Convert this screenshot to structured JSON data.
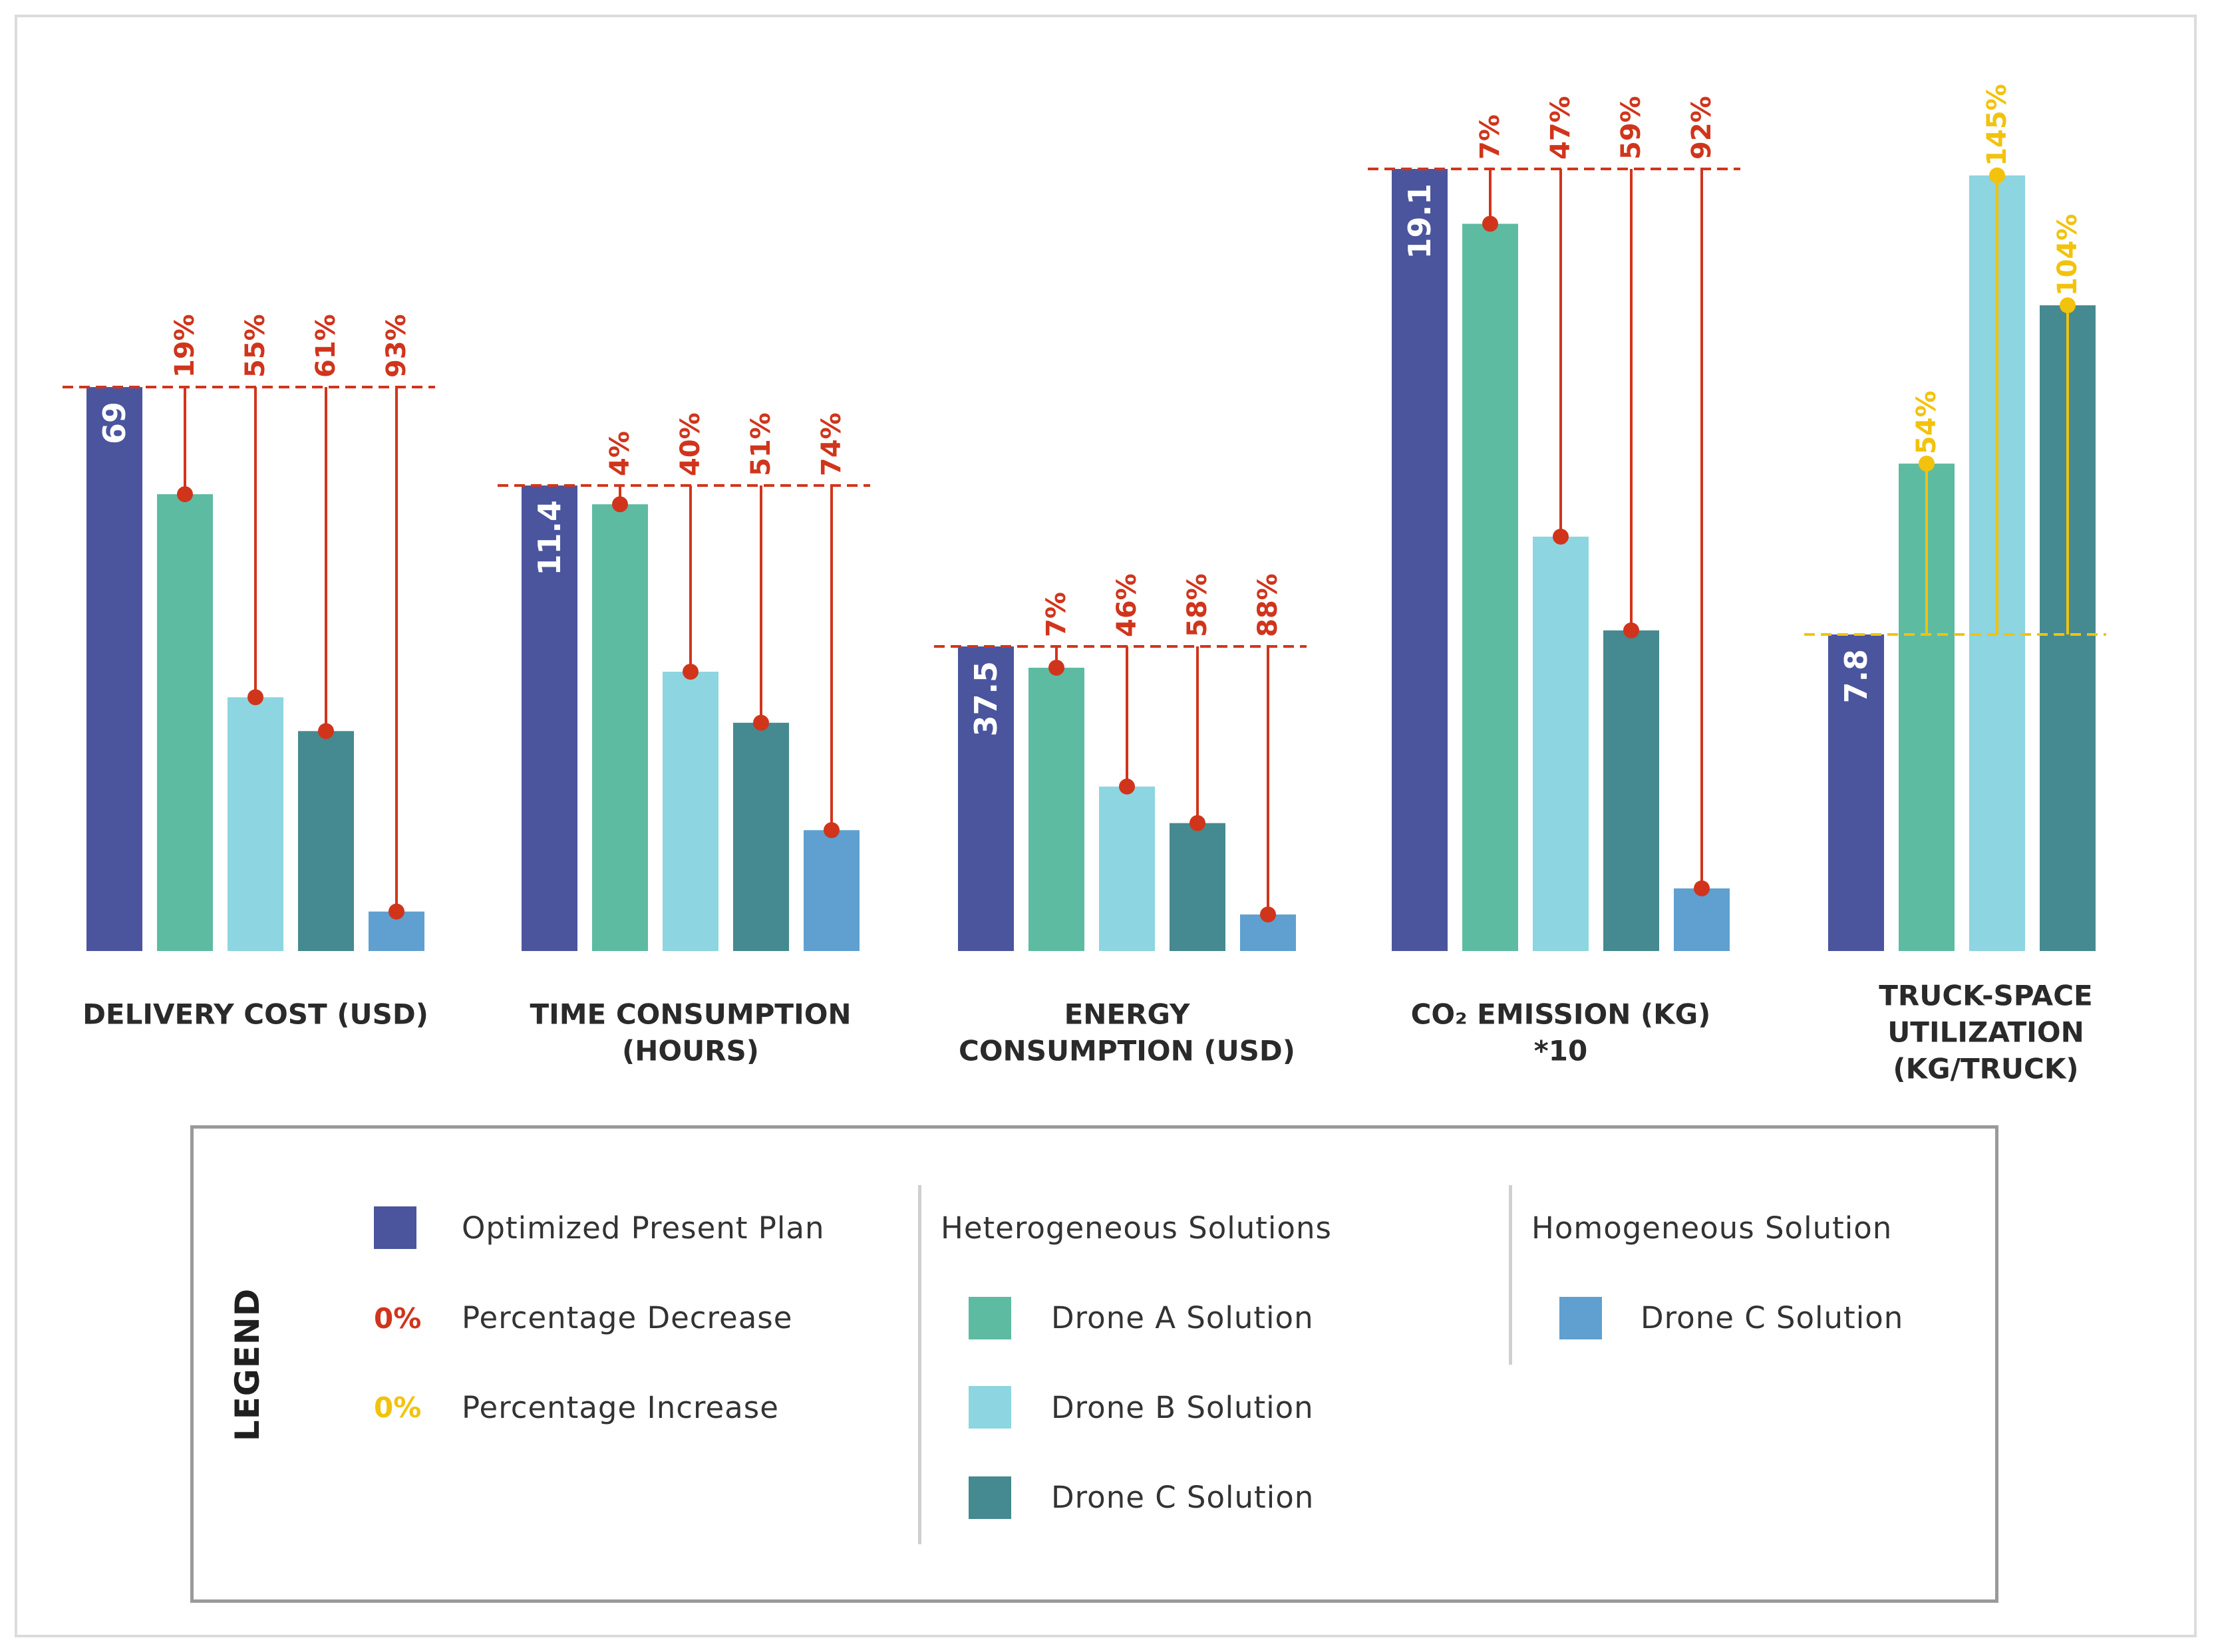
{
  "chart_data": {
    "type": "bar",
    "categories": [
      [
        "DELIVERY COST (USD)"
      ],
      [
        "TIME CONSUMPTION",
        "(HOURS)"
      ],
      [
        "ENERGY",
        "CONSUMPTION (USD)"
      ],
      [
        "CO₂ EMISSION (KG)",
        "*10"
      ],
      [
        "TRUCK-SPACE",
        "UTILIZATION",
        "(KG/TRUCK)"
      ]
    ],
    "baseline_labels": [
      "69",
      "11.4",
      "37.5",
      "19.1",
      "7.8"
    ],
    "series": [
      {
        "name": "Optimized Present Plan",
        "color": "#4a559e",
        "values": [
          69,
          11.4,
          37.5,
          19.1,
          7.8
        ]
      },
      {
        "name": "Drone A Solution",
        "color": "#5dbba2",
        "values": [
          55.89,
          10.94,
          34.88,
          17.76,
          12.01
        ]
      },
      {
        "name": "Drone B Solution",
        "color": "#8dd5e0",
        "values": [
          31.05,
          6.84,
          20.25,
          10.12,
          19.11
        ]
      },
      {
        "name": "Drone C Solution",
        "color": "#458a90",
        "values": [
          26.91,
          5.59,
          15.75,
          7.83,
          15.91
        ]
      },
      {
        "name": "Drone C Solution",
        "color": "#5fa0d0",
        "values": [
          4.83,
          2.96,
          4.5,
          1.53,
          null
        ]
      }
    ],
    "percent_labels": [
      [
        "19%",
        "55%",
        "61%",
        "93%"
      ],
      [
        "4%",
        "40%",
        "51%",
        "74%"
      ],
      [
        "7%",
        "46%",
        "58%",
        "88%"
      ],
      [
        "7%",
        "47%",
        "59%",
        "92%"
      ],
      [
        "54%",
        "145%",
        "104%"
      ]
    ],
    "percent_kind": [
      "decrease",
      "decrease",
      "decrease",
      "decrease",
      "increase"
    ],
    "colors": {
      "decrease": "#d0351c",
      "increase": "#f2c20d"
    }
  },
  "legend": {
    "title": "LEGEND",
    "present_plan": "Optimized Present Plan",
    "decrease_sample": "0%",
    "decrease_label": "Percentage Decrease",
    "increase_sample": "0%",
    "increase_label": "Percentage Increase",
    "hetero_title": "Heterogeneous  Solutions",
    "drone_a": "Drone A Solution",
    "drone_b": "Drone B Solution",
    "drone_c": "Drone C Solution",
    "homo_title": "Homogeneous  Solution",
    "homo_drone_c": "Drone C Solution"
  }
}
